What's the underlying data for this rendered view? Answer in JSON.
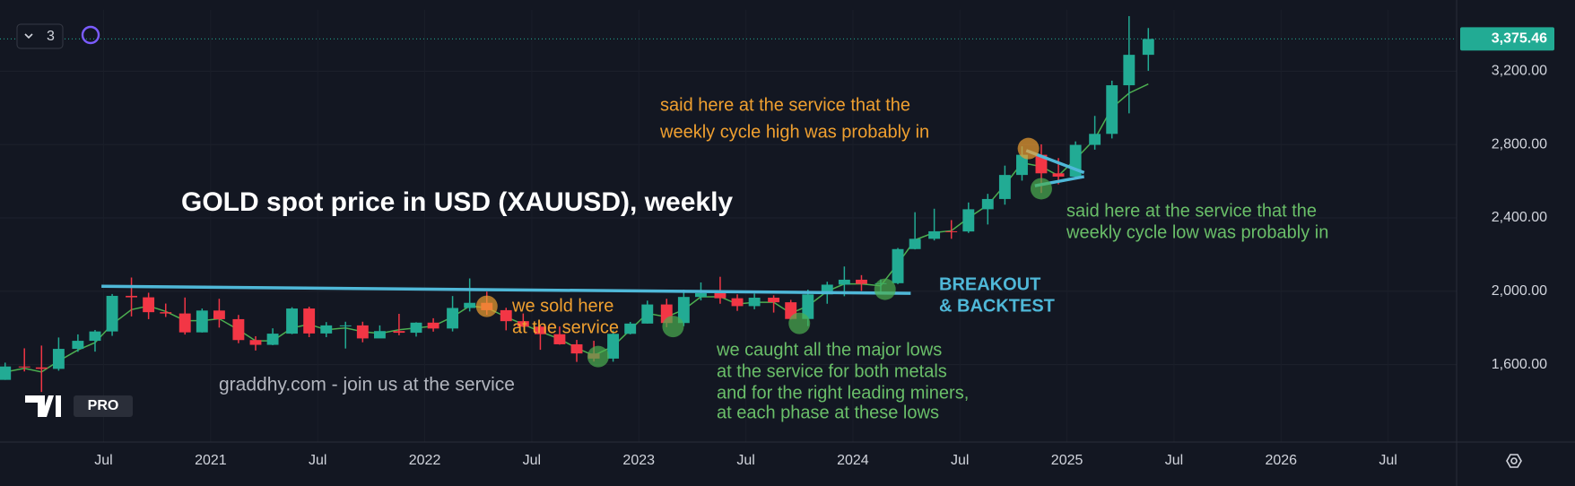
{
  "ui": {
    "legend_count": "3",
    "logo_badge": "PRO"
  },
  "chart_data": {
    "type": "candlestick",
    "title": "GOLD spot price in USD (XAUUSD), weekly",
    "watermark": "graddhy.com - join us at the service",
    "annotations": [
      {
        "lines": [
          "said here at the service that the",
          "weekly cycle high was probably in"
        ]
      },
      {
        "lines": [
          "said here at the service that the",
          "weekly cycle low was probably in"
        ]
      },
      {
        "lines": [
          "BREAKOUT",
          "& BACKTEST"
        ]
      },
      {
        "lines": [
          "we sold here",
          "at the service"
        ]
      },
      {
        "lines": [
          "we caught all the major lows",
          "at the service for both metals",
          "and for the right leading miners,",
          "at each phase at these lows"
        ]
      }
    ],
    "xlim": [
      2020.016,
      2026.82
    ],
    "xticks": [
      {
        "value": 2020.5,
        "label": "Jul"
      },
      2021,
      {
        "value": 2021.5,
        "label": "Jul"
      },
      2022,
      {
        "value": 2022.5,
        "label": "Jul"
      },
      2023,
      {
        "value": 2023.5,
        "label": "Jul"
      },
      2024,
      {
        "value": 2024.5,
        "label": "Jul"
      },
      2025,
      {
        "value": 2025.5,
        "label": "Jul"
      },
      2026,
      {
        "value": 2026.5,
        "label": "Jul"
      }
    ],
    "ylim": [
      1178,
      3534
    ],
    "yticks": [
      {
        "value": 1600,
        "label": "1,600.00"
      },
      {
        "value": 2000,
        "label": "2,000.00"
      },
      {
        "value": 2400,
        "label": "2,400.00"
      },
      {
        "value": 2800,
        "label": "2,800.00"
      },
      {
        "value": 3200,
        "label": "3,200.00"
      }
    ],
    "up_color": "#22ab94",
    "down_color": "#f23645",
    "candles": {
      "x": [
        2020.04,
        2020.13,
        2020.21,
        2020.29,
        2020.38,
        2020.46,
        2020.54,
        2020.63,
        2020.71,
        2020.79,
        2020.88,
        2020.96,
        2021.04,
        2021.13,
        2021.21,
        2021.29,
        2021.38,
        2021.46,
        2021.54,
        2021.63,
        2021.71,
        2021.79,
        2021.88,
        2021.96,
        2022.04,
        2022.13,
        2022.21,
        2022.29,
        2022.38,
        2022.46,
        2022.54,
        2022.63,
        2022.71,
        2022.79,
        2022.88,
        2022.96,
        2023.04,
        2023.13,
        2023.21,
        2023.29,
        2023.38,
        2023.46,
        2023.54,
        2023.63,
        2023.71,
        2023.79,
        2023.88,
        2023.96,
        2024.04,
        2024.13,
        2024.21,
        2024.29,
        2024.38,
        2024.46,
        2024.54,
        2024.63,
        2024.71,
        2024.79,
        2024.88,
        2024.96,
        2025.04,
        2025.13,
        2025.21,
        2025.29,
        2025.38
      ],
      "open": [
        1517,
        1590,
        1585,
        1577,
        1686,
        1730,
        1781,
        1975,
        1967,
        1886,
        1879,
        1776,
        1895,
        1848,
        1734,
        1708,
        1769,
        1906,
        1770,
        1814,
        1814,
        1743,
        1783,
        1774,
        1829,
        1797,
        1909,
        1937,
        1897,
        1837,
        1807,
        1766,
        1711,
        1661,
        1633,
        1768,
        1824,
        1928,
        1827,
        1969,
        1990,
        1962,
        1919,
        1965,
        1940,
        1849,
        1983,
        2036,
        2063,
        2040,
        2044,
        2230,
        2286,
        2327,
        2326,
        2447,
        2503,
        2634,
        2744,
        2643,
        2625,
        2798,
        2858,
        3123,
        3289
      ],
      "high": [
        1611,
        1689,
        1704,
        1748,
        1765,
        1789,
        1985,
        2075,
        1992,
        1933,
        1966,
        1906,
        1959,
        1871,
        1755,
        1798,
        1913,
        1916,
        1832,
        1834,
        1834,
        1814,
        1877,
        1831,
        1853,
        1974,
        2070,
        1998,
        1910,
        1879,
        1814,
        1808,
        1735,
        1730,
        1786,
        1833,
        1949,
        1959,
        2009,
        2048,
        2079,
        1983,
        1987,
        1978,
        1953,
        2009,
        2052,
        2135,
        2088,
        2065,
        2236,
        2431,
        2450,
        2388,
        2484,
        2531,
        2685,
        2790,
        2801,
        2726,
        2817,
        2956,
        3148,
        3500,
        3435
      ],
      "low": [
        1517,
        1563,
        1451,
        1567,
        1670,
        1671,
        1757,
        1863,
        1848,
        1860,
        1764,
        1775,
        1802,
        1717,
        1677,
        1706,
        1766,
        1750,
        1750,
        1688,
        1722,
        1746,
        1760,
        1753,
        1780,
        1781,
        1890,
        1872,
        1787,
        1805,
        1681,
        1709,
        1615,
        1617,
        1616,
        1765,
        1824,
        1804,
        1810,
        1950,
        1932,
        1893,
        1902,
        1884,
        1846,
        1810,
        1932,
        1973,
        2002,
        1984,
        2039,
        2228,
        2277,
        2286,
        2318,
        2364,
        2472,
        2603,
        2536,
        2583,
        2614,
        2772,
        2833,
        2970,
        3202
      ],
      "close": [
        1590,
        1585,
        1577,
        1686,
        1730,
        1781,
        1975,
        1967,
        1886,
        1879,
        1776,
        1895,
        1848,
        1734,
        1708,
        1769,
        1906,
        1770,
        1814,
        1814,
        1743,
        1783,
        1774,
        1829,
        1797,
        1909,
        1937,
        1897,
        1837,
        1807,
        1766,
        1711,
        1661,
        1633,
        1768,
        1824,
        1928,
        1827,
        1969,
        1990,
        1962,
        1919,
        1965,
        1940,
        1849,
        1983,
        2036,
        2063,
        2040,
        2044,
        2230,
        2286,
        2327,
        2326,
        2447,
        2503,
        2634,
        2744,
        2643,
        2625,
        2798,
        2858,
        3123,
        3289,
        3375.46
      ]
    },
    "last_price_label": "3,375.46",
    "moving_average": {
      "color": "#4caf50",
      "values": [
        1560,
        1580,
        1560,
        1620,
        1680,
        1720,
        1820,
        1900,
        1920,
        1890,
        1840,
        1840,
        1850,
        1790,
        1730,
        1730,
        1800,
        1820,
        1790,
        1800,
        1780,
        1770,
        1790,
        1800,
        1810,
        1860,
        1920,
        1910,
        1860,
        1820,
        1780,
        1740,
        1690,
        1650,
        1700,
        1790,
        1880,
        1860,
        1900,
        1970,
        1970,
        1930,
        1940,
        1940,
        1880,
        1920,
        2000,
        2040,
        2040,
        2030,
        2150,
        2280,
        2320,
        2330,
        2400,
        2470,
        2580,
        2700,
        2680,
        2630,
        2720,
        2830,
        3000,
        3080,
        3130
      ]
    },
    "trendlines": [
      {
        "color": "#4fb8d8",
        "x": [
          2020.49,
          2024.27
        ],
        "y": [
          2027,
          1989
        ]
      },
      {
        "color": "#4fb8d8",
        "x": [
          2024.81,
          2025.08
        ],
        "y": [
          2767,
          2647
        ]
      },
      {
        "color": "#4fb8d8",
        "x": [
          2024.85,
          2025.08
        ],
        "y": [
          2575,
          2625
        ]
      }
    ],
    "highlights": [
      {
        "color": "#f0a030",
        "x": 2022.29,
        "y": 1918
      },
      {
        "color": "#4caf50",
        "x": 2022.81,
        "y": 1644
      },
      {
        "color": "#4caf50",
        "x": 2023.16,
        "y": 1808
      },
      {
        "color": "#4caf50",
        "x": 2023.75,
        "y": 1825
      },
      {
        "color": "#4caf50",
        "x": 2024.15,
        "y": 2011
      },
      {
        "color": "#f0a030",
        "x": 2024.82,
        "y": 2778
      },
      {
        "color": "#4caf50",
        "x": 2024.88,
        "y": 2559
      }
    ]
  }
}
